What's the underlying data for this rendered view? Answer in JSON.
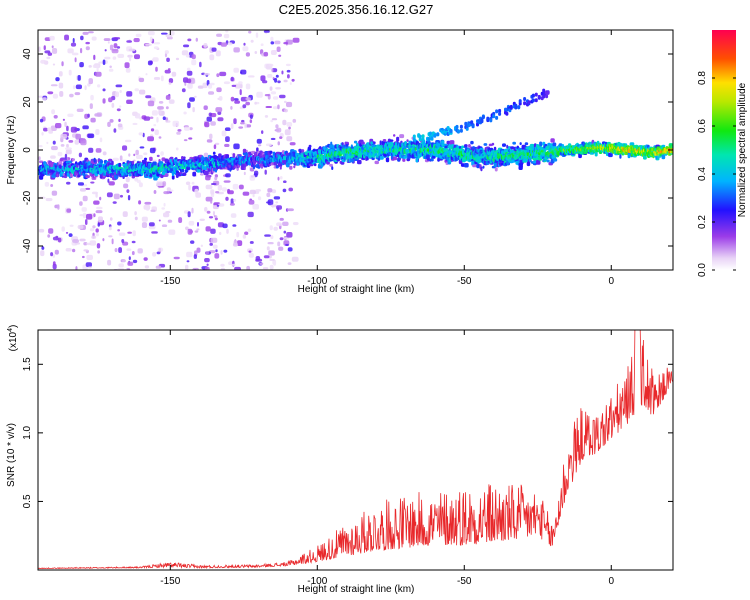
{
  "chart_data": [
    {
      "type": "heatmap",
      "title": "C2E5.2025.356.16.12.G27",
      "xlabel": "Height of straight line (km)",
      "ylabel": "Frequency (Hz)",
      "xlim": [
        -195,
        21
      ],
      "ylim": [
        -50,
        50
      ],
      "xticks": [
        -150,
        -100,
        -50,
        0
      ],
      "xtick_labels": [
        "-150",
        "-100",
        "-50",
        "0"
      ],
      "yticks": [
        -40,
        -20,
        0,
        20,
        40
      ],
      "ytick_labels": [
        "-40",
        "-20",
        "0",
        "20",
        "40"
      ],
      "colorbar": {
        "label": "Normalized spectral amplitude",
        "range": [
          0,
          1
        ],
        "ticks": [
          0.0,
          0.2,
          0.4,
          0.6,
          0.8
        ],
        "tick_labels": [
          "0.0",
          "0.2",
          "0.4",
          "0.6",
          "0.8"
        ]
      },
      "main_band": [
        {
          "x": -190,
          "f": -8,
          "amp": 0.35
        },
        {
          "x": -170,
          "f": -8,
          "amp": 0.4
        },
        {
          "x": -155,
          "f": -8,
          "amp": 0.45
        },
        {
          "x": -140,
          "f": -6,
          "amp": 0.4
        },
        {
          "x": -120,
          "f": -4,
          "amp": 0.3
        },
        {
          "x": -100,
          "f": -3,
          "amp": 0.45
        },
        {
          "x": -90,
          "f": -1,
          "amp": 0.5
        },
        {
          "x": -75,
          "f": 0,
          "amp": 0.45
        },
        {
          "x": -60,
          "f": 0,
          "amp": 0.5
        },
        {
          "x": -45,
          "f": -3,
          "amp": 0.45
        },
        {
          "x": -30,
          "f": -2,
          "amp": 0.5
        },
        {
          "x": -15,
          "f": 0,
          "amp": 0.6
        },
        {
          "x": -5,
          "f": 1,
          "amp": 0.7
        },
        {
          "x": 5,
          "f": 0,
          "amp": 0.75
        },
        {
          "x": 15,
          "f": -1,
          "amp": 0.75
        },
        {
          "x": 20,
          "f": 0,
          "amp": 0.8
        }
      ],
      "branch": [
        {
          "x": -65,
          "f": 5,
          "amp": 0.4
        },
        {
          "x": -55,
          "f": 8,
          "amp": 0.35
        },
        {
          "x": -45,
          "f": 12,
          "amp": 0.3
        },
        {
          "x": -35,
          "f": 17,
          "amp": 0.28
        },
        {
          "x": -28,
          "f": 21,
          "amp": 0.25
        },
        {
          "x": -22,
          "f": 24,
          "amp": 0.22
        }
      ],
      "noise_region": {
        "x": [
          -195,
          -108
        ],
        "f": [
          -50,
          50
        ],
        "amp": 0.15
      }
    },
    {
      "type": "line",
      "xlabel": "Height of straight line (km)",
      "ylabel": "SNR (10 * v/v)",
      "y_scale_label": "(x10",
      "y_scale_exponent": "4",
      "y_scale_suffix": ")",
      "xlim": [
        -195,
        21
      ],
      "ylim": [
        0,
        1.75
      ],
      "xticks": [
        -150,
        -100,
        -50,
        0
      ],
      "xtick_labels": [
        "-150",
        "-100",
        "-50",
        "0"
      ],
      "yticks": [
        0.5,
        1.0,
        1.5
      ],
      "ytick_labels": [
        "0.5",
        "1.0",
        "1.5"
      ],
      "series": [
        {
          "name": "SNR",
          "color": "#e8282b",
          "envelope": {
            "x": [
              -195,
              -160,
              -150,
              -140,
              -120,
              -110,
              -100,
              -90,
              -80,
              -70,
              -60,
              -50,
              -40,
              -30,
              -25,
              -20,
              -15,
              -10,
              -5,
              0,
              5,
              10,
              15,
              20,
              21
            ],
            "base": [
              0.01,
              0.015,
              0.02,
              0.015,
              0.02,
              0.03,
              0.06,
              0.1,
              0.14,
              0.16,
              0.18,
              0.18,
              0.2,
              0.22,
              0.25,
              0.15,
              0.55,
              0.8,
              0.85,
              0.95,
              1.05,
              1.2,
              1.1,
              1.35,
              1.35
            ],
            "amp": [
              0.005,
              0.01,
              0.04,
              0.02,
              0.02,
              0.03,
              0.12,
              0.25,
              0.35,
              0.4,
              0.4,
              0.45,
              0.45,
              0.4,
              0.35,
              0.2,
              0.45,
              0.4,
              0.3,
              0.35,
              0.4,
              0.55,
              0.3,
              0.15,
              0.1
            ]
          }
        }
      ]
    }
  ]
}
